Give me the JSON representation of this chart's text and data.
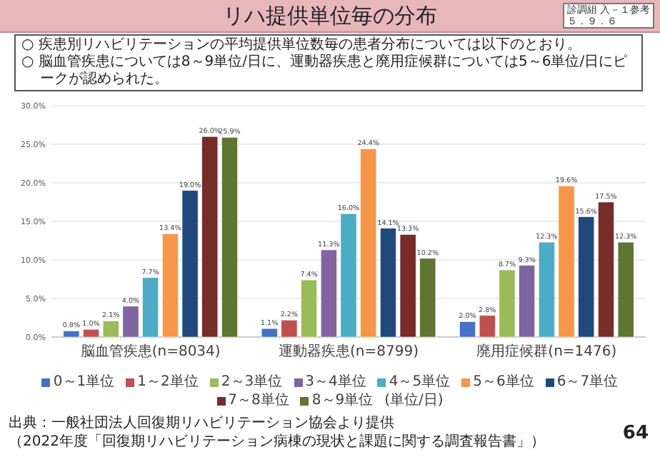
{
  "chart_data": {
    "type": "bar",
    "title": "リハ提供単位毎の分布",
    "annotations": [
      "診調組 入－１参考",
      "５．９．６",
      "○ 疾患別リハビリテーションの平均提供単位数毎の患者分布については以下のとおり。",
      "○ 脳血管疾患については8～9単位/日に、運動器疾患と廃用症候群については5～6単位/日にピークが認められた。",
      "(単位/日)",
      "出典：一般社団法人回復期リハビリテーション協会より提供",
      "（2022年度「回復期リハビリテーション病棟の現状と課題に関する調査報告書」）",
      "64"
    ],
    "categories": [
      "脳血管疾患(n=8034)",
      "運動器疾患(n=8799)",
      "廃用症候群(n=1476)"
    ],
    "series": [
      {
        "name": "0～1単位",
        "color": "#4472c4",
        "values": [
          0.8,
          1.1,
          2.0
        ],
        "value_labels": [
          "0.8%",
          "1.1%",
          "2.0%"
        ]
      },
      {
        "name": "1～2単位",
        "color": "#c0504d",
        "values": [
          1.0,
          2.2,
          2.8
        ],
        "value_labels": [
          "1.0%",
          "2.2%",
          "2.8%"
        ]
      },
      {
        "name": "2～3単位",
        "color": "#9bbb59",
        "values": [
          2.1,
          7.4,
          8.7
        ],
        "value_labels": [
          "2.1%",
          "7.4%",
          "8.7%"
        ]
      },
      {
        "name": "3～4単位",
        "color": "#8064a2",
        "values": [
          4.0,
          11.3,
          9.3
        ],
        "value_labels": [
          "4.0%",
          "11.3%",
          "9.3%"
        ]
      },
      {
        "name": "4～5単位",
        "color": "#4bacc6",
        "values": [
          7.7,
          16.0,
          12.3
        ],
        "value_labels": [
          "7.7%",
          "16.0%",
          "12.3%"
        ]
      },
      {
        "name": "5～6単位",
        "color": "#f79646",
        "values": [
          13.4,
          24.4,
          19.6
        ],
        "value_labels": [
          "13.4%",
          "24.4%",
          "19.6%"
        ]
      },
      {
        "name": "6～7単位",
        "color": "#1f497d",
        "values": [
          19.0,
          14.1,
          15.6
        ],
        "value_labels": [
          "19.0%",
          "14.1%",
          "15.6%"
        ]
      },
      {
        "name": "7～8単位",
        "color": "#772c2a",
        "values": [
          26.0,
          13.3,
          17.5
        ],
        "value_labels": [
          "26.0%",
          "13.3%",
          "17.5%"
        ]
      },
      {
        "name": "8～9単位",
        "color": "#5f7530",
        "values": [
          25.9,
          10.2,
          12.3
        ],
        "value_labels": [
          "25.9%",
          "10.2%",
          "12.3%"
        ]
      }
    ],
    "ylim": [
      0,
      30
    ],
    "yticks": [
      {
        "value": 0,
        "label": "0.0%"
      },
      {
        "value": 5,
        "label": "5.0%"
      },
      {
        "value": 10,
        "label": "10.0%"
      },
      {
        "value": 15,
        "label": "15.0%"
      },
      {
        "value": 20,
        "label": "20.0%"
      },
      {
        "value": 25,
        "label": "25.0%"
      },
      {
        "value": 30,
        "label": "30.0%"
      }
    ],
    "grid": "y",
    "legend": "bottom"
  }
}
